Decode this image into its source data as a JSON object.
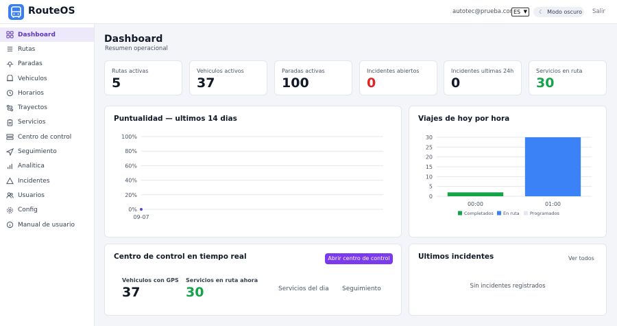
{
  "app": {
    "name": "RouteOS",
    "brand_color": "#3b7ef0",
    "accent": "#7c3aed"
  },
  "header": {
    "user_email": "autotec@prueba.com",
    "language": "ES",
    "dark_mode_label": "Modo oscuro",
    "logout_label": "Salir"
  },
  "sidebar": {
    "items": [
      {
        "label": "Dashboard",
        "icon": "grid-icon",
        "active": true
      },
      {
        "label": "Rutas",
        "icon": "route-icon"
      },
      {
        "label": "Paradas",
        "icon": "map-pin-icon"
      },
      {
        "label": "Vehiculos",
        "icon": "bus-icon"
      },
      {
        "label": "Horarios",
        "icon": "clock-icon"
      },
      {
        "label": "Trayectos",
        "icon": "path-icon"
      },
      {
        "label": "Servicios",
        "icon": "clipboard-icon"
      },
      {
        "label": "Centro de control",
        "icon": "monitor-icon"
      },
      {
        "label": "Seguimiento",
        "icon": "navigation-icon"
      },
      {
        "label": "Analitica",
        "icon": "bar-chart-icon"
      },
      {
        "label": "Incidentes",
        "icon": "alert-triangle-icon"
      },
      {
        "label": "Usuarios",
        "icon": "users-icon"
      },
      {
        "label": "Config",
        "icon": "gear-icon"
      },
      {
        "label": "Manual de usuario",
        "icon": "info-icon"
      }
    ]
  },
  "page": {
    "title": "Dashboard",
    "subtitle": "Resumen operacional"
  },
  "stats": [
    {
      "label": "Rutas activas",
      "value": "5"
    },
    {
      "label": "Vehiculos activos",
      "value": "37"
    },
    {
      "label": "Paradas activas",
      "value": "100"
    },
    {
      "label": "Incidentes abiertos",
      "value": "0",
      "color": "#dc2626"
    },
    {
      "label": "Incidentes ultimas 24h",
      "value": "0"
    },
    {
      "label": "Servicios en ruta",
      "value": "30",
      "color": "#16a34a"
    }
  ],
  "punctuality": {
    "title": "Puntualidad — ultimos 14 dias"
  },
  "trips": {
    "title": "Viajes de hoy por hora"
  },
  "control": {
    "title": "Centro de control en tiempo real",
    "open_button": "Abrir centro de control",
    "vehicles_label": "Vehiculos con GPS",
    "vehicles_value": "37",
    "services_label": "Servicios en ruta ahora",
    "services_value": "30",
    "link_services": "Servicios del dia",
    "link_tracking": "Seguimiento"
  },
  "incidents": {
    "title": "Ultimos incidentes",
    "see_all": "Ver todos",
    "empty": "Sin incidentes registrados"
  },
  "chart_data": [
    {
      "type": "line",
      "title": "Puntualidad — ultimos 14 dias",
      "x": [
        "09-07"
      ],
      "series": [
        {
          "values": [
            0
          ],
          "color": "#4f46e5"
        }
      ],
      "yticks": [
        "0%",
        "20%",
        "40%",
        "60%",
        "80%",
        "100%"
      ],
      "ylim": [
        0,
        100
      ],
      "grid": true
    },
    {
      "type": "bar",
      "title": "Viajes de hoy por hora",
      "categories": [
        "00:00",
        "01:00"
      ],
      "series": [
        {
          "name": "Completados",
          "values": [
            2,
            0
          ],
          "color": "#16a34a"
        },
        {
          "name": "En ruta",
          "values": [
            0,
            30
          ],
          "color": "#3b82f6"
        },
        {
          "name": "Programados",
          "values": [
            0,
            0
          ],
          "color": "#e5e7f3"
        }
      ],
      "yticks": [
        "0",
        "5",
        "10",
        "15",
        "20",
        "25",
        "30"
      ],
      "ylim": [
        0,
        30
      ],
      "grid": true,
      "legend": "bottom"
    }
  ]
}
